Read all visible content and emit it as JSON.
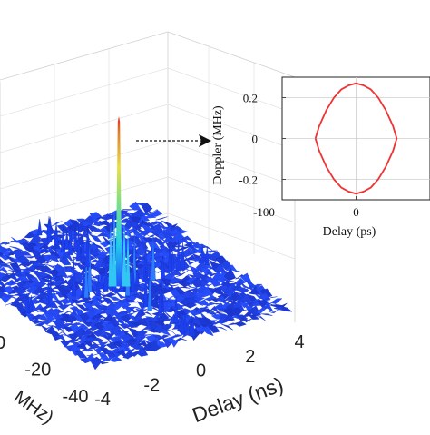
{
  "chart_data": [
    {
      "type": "surface3d",
      "title": "",
      "xlabel": "Delay (ns)",
      "ylabel_partial": "MHz)",
      "x_ticks": [
        "-4",
        "-2",
        "0",
        "2",
        "4"
      ],
      "y_ticks": [
        "0",
        "-20",
        "-40"
      ],
      "x_range": [
        -4,
        4
      ],
      "y_range": [
        -40,
        40
      ],
      "colormap": "jet",
      "peak": {
        "x": 0,
        "y": 0,
        "value": 1.0
      },
      "floor_level": 0.1,
      "grid": true
    },
    {
      "type": "line",
      "title": "",
      "xlabel": "Delay (ps)",
      "ylabel": "Doppler (MHz)",
      "x_ticks": [
        "-100",
        "0"
      ],
      "y_ticks": [
        "0.2",
        "0",
        "-0.2"
      ],
      "xlim": [
        -100,
        100
      ],
      "ylim": [
        -0.3,
        0.3
      ],
      "series": [
        {
          "color": "#ee3333",
          "x": [
            -55,
            -50,
            -40,
            -30,
            -20,
            -10,
            0,
            10,
            20,
            30,
            40,
            50,
            55,
            50,
            40,
            30,
            20,
            10,
            0,
            -10,
            -20,
            -30,
            -40,
            -50,
            -55
          ],
          "y": [
            0.0,
            0.06,
            0.14,
            0.2,
            0.24,
            0.26,
            0.27,
            0.26,
            0.24,
            0.2,
            0.14,
            0.06,
            0.0,
            -0.06,
            -0.14,
            -0.2,
            -0.24,
            -0.26,
            -0.27,
            -0.26,
            -0.24,
            -0.2,
            -0.14,
            -0.06,
            0.0
          ]
        }
      ],
      "grid": true
    }
  ],
  "colors": {
    "surface_low": "#0a0a8c",
    "surface_mid": "#1f3dff",
    "peak_cyan": "#20d0e8",
    "peak_yellow": "#e8e040",
    "peak_red": "#e03020",
    "inset_line": "#ee3333"
  }
}
